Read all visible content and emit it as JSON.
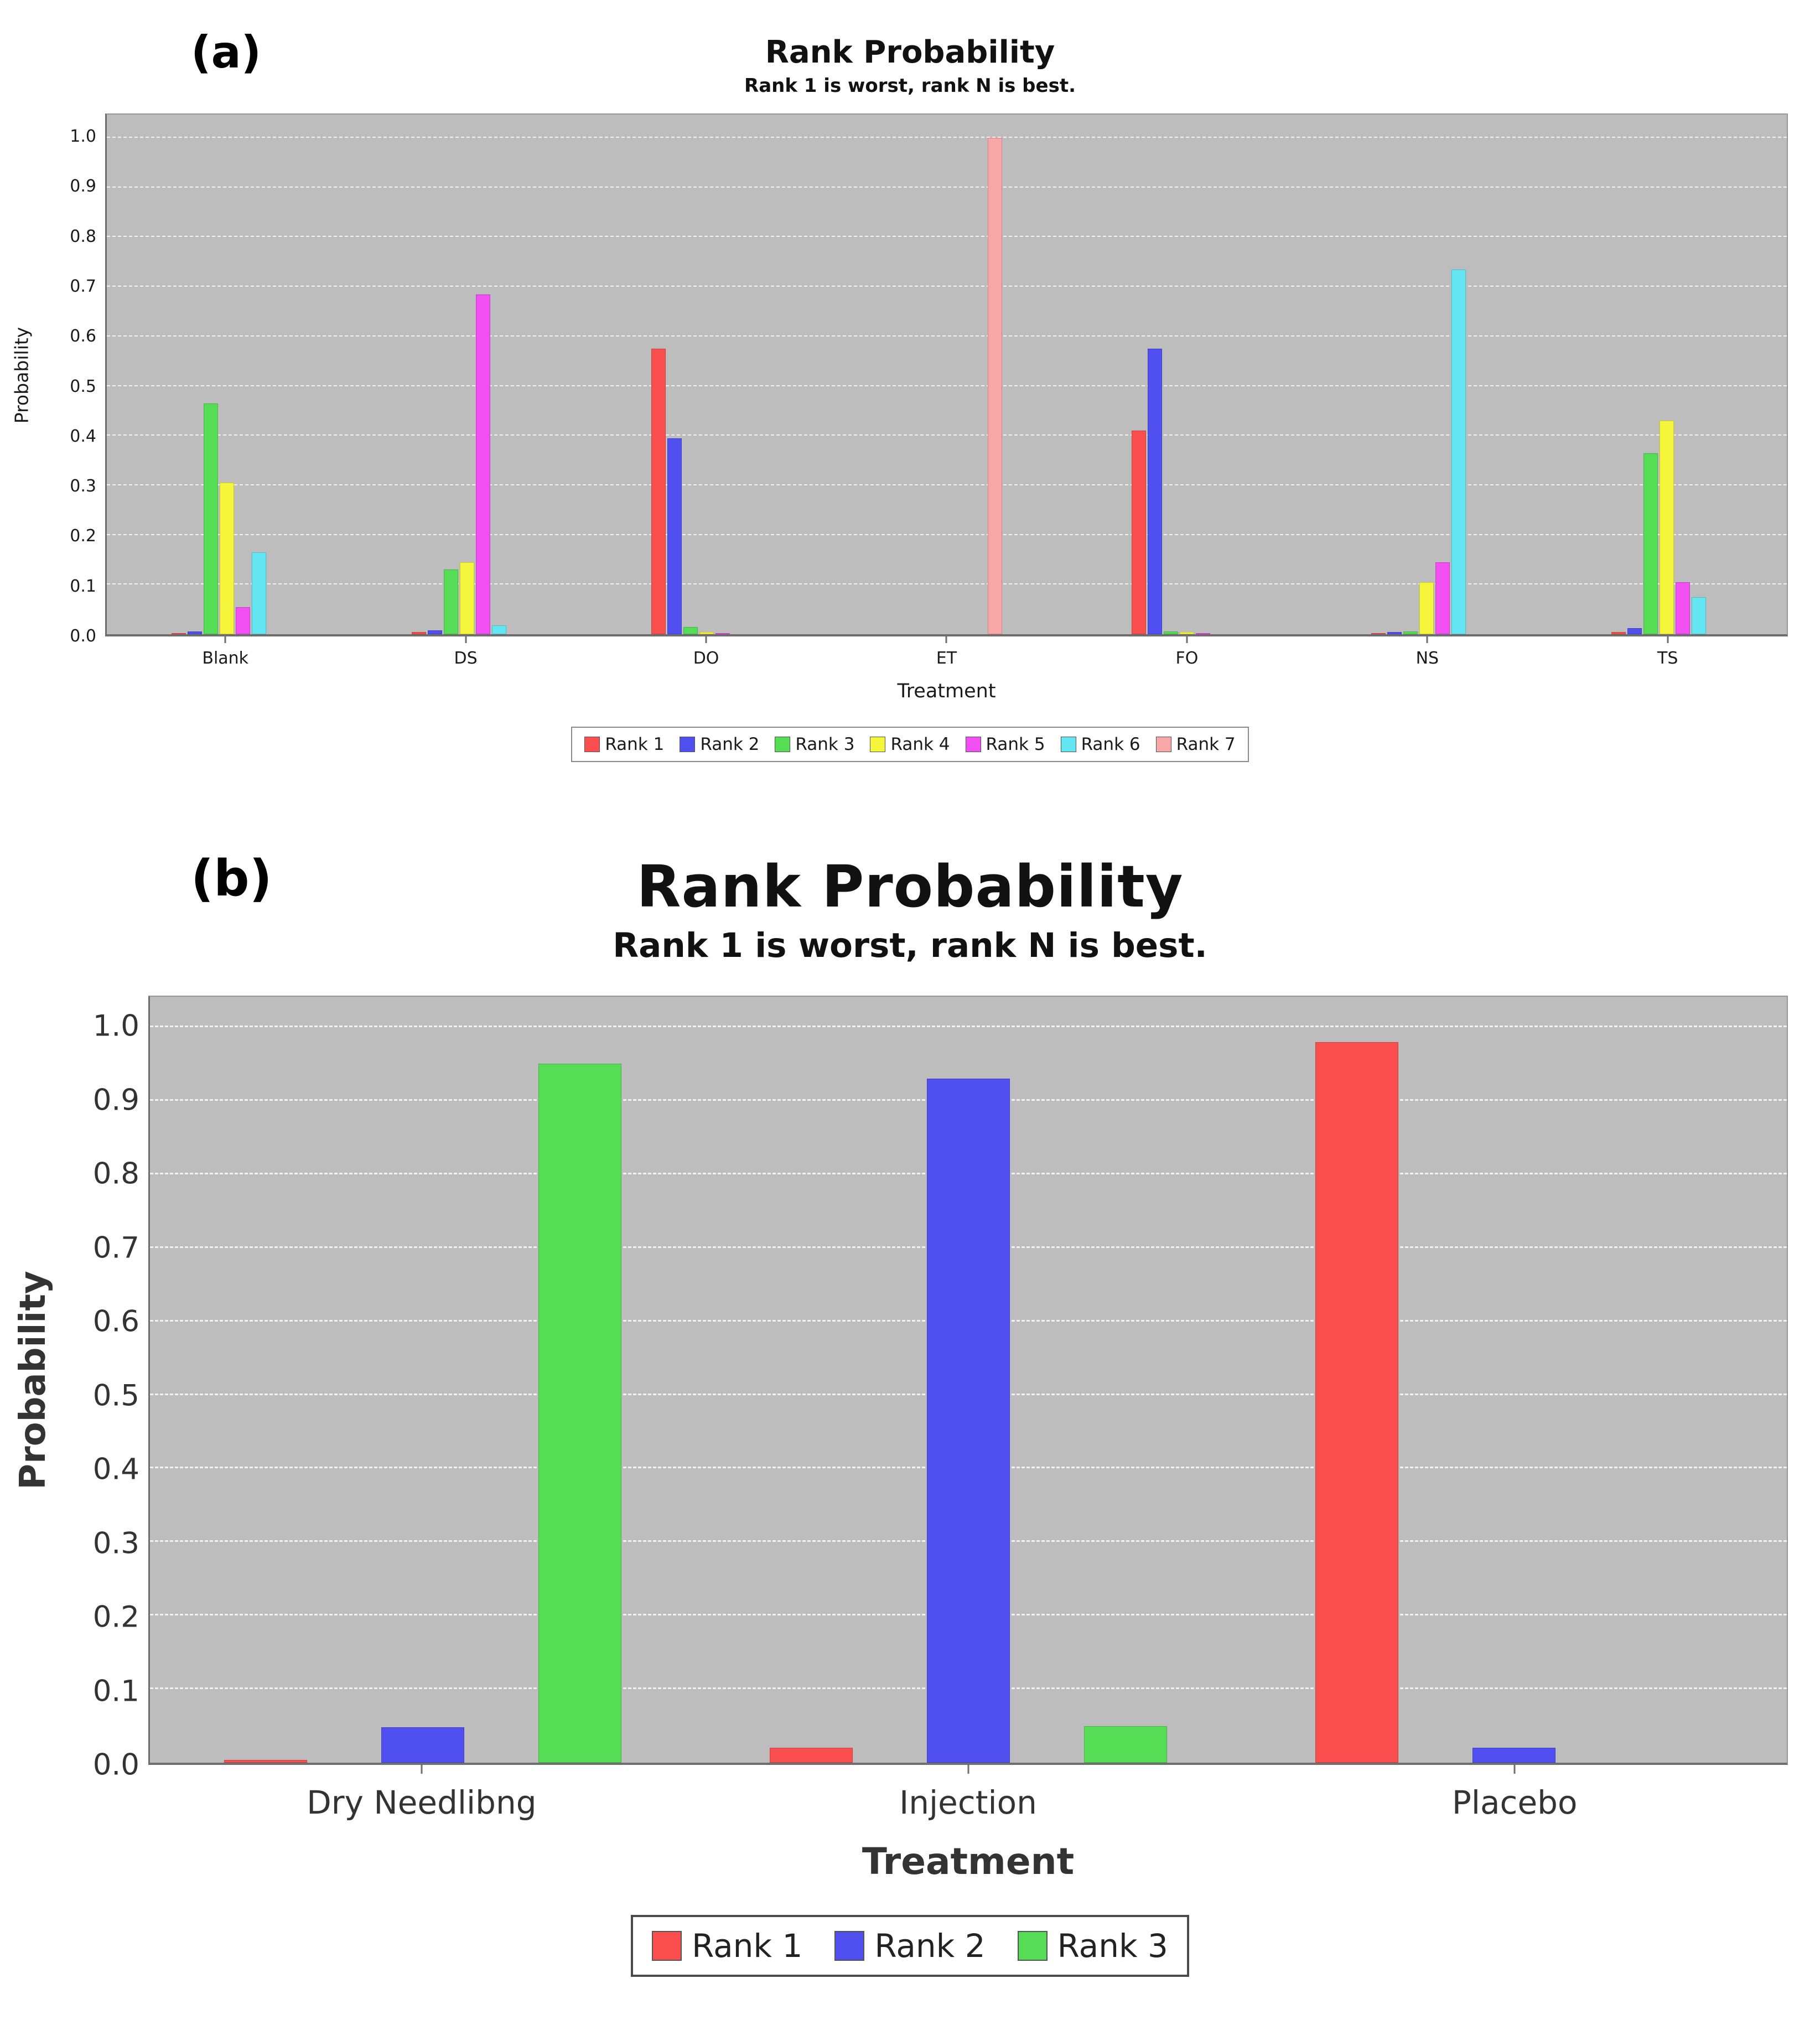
{
  "panels": {
    "a": "(a)",
    "b": "(b)"
  },
  "chart_data": [
    {
      "type": "bar",
      "title": "Rank Probability",
      "subtitle": "Rank 1 is worst, rank N is best.",
      "xlabel": "Treatment",
      "ylabel": "Probability",
      "ylim": [
        0,
        1.0
      ],
      "yticks": [
        0.0,
        0.1,
        0.2,
        0.3,
        0.4,
        0.5,
        0.6,
        0.7,
        0.8,
        0.9,
        1.0
      ],
      "grid": "horizontal-dashed",
      "legend_position": "bottom",
      "plot_background": "#bdbdbd",
      "categories": [
        "Blank",
        "DS",
        "DO",
        "ET",
        "FO",
        "NS",
        "TS"
      ],
      "series": [
        {
          "name": "Rank 1",
          "color": "#fb4f4f",
          "values": [
            0.002,
            0.005,
            0.575,
            0.0,
            0.41,
            0.002,
            0.005
          ]
        },
        {
          "name": "Rank 2",
          "color": "#5050f0",
          "values": [
            0.006,
            0.008,
            0.395,
            0.0,
            0.575,
            0.005,
            0.012
          ]
        },
        {
          "name": "Rank 3",
          "color": "#55dd55",
          "values": [
            0.465,
            0.13,
            0.015,
            0.0,
            0.006,
            0.006,
            0.365
          ]
        },
        {
          "name": "Rank 4",
          "color": "#f5f53c",
          "values": [
            0.305,
            0.145,
            0.005,
            0.0,
            0.004,
            0.105,
            0.43
          ]
        },
        {
          "name": "Rank 5",
          "color": "#f24ff2",
          "values": [
            0.055,
            0.685,
            0.002,
            0.0,
            0.002,
            0.145,
            0.105
          ]
        },
        {
          "name": "Rank 6",
          "color": "#63e6f2",
          "values": [
            0.165,
            0.018,
            0.0,
            0.0,
            0.0,
            0.735,
            0.075
          ]
        },
        {
          "name": "Rank 7",
          "color": "#f9a6a6",
          "values": [
            0.0,
            0.0,
            0.0,
            1.0,
            0.0,
            0.0,
            0.0
          ]
        }
      ]
    },
    {
      "type": "bar",
      "title": "Rank Probability",
      "subtitle": "Rank 1 is worst, rank N is best.",
      "xlabel": "Treatment",
      "ylabel": "Probability",
      "ylim": [
        0,
        1.0
      ],
      "yticks": [
        0.0,
        0.1,
        0.2,
        0.3,
        0.4,
        0.5,
        0.6,
        0.7,
        0.8,
        0.9,
        1.0
      ],
      "grid": "horizontal-dashed",
      "legend_position": "bottom",
      "plot_background": "#bdbdbd",
      "categories": [
        "Dry Needlibng",
        "Injection",
        "Placebo"
      ],
      "series": [
        {
          "name": "Rank 1",
          "color": "#fb4f4f",
          "values": [
            0.004,
            0.02,
            0.98
          ]
        },
        {
          "name": "Rank 2",
          "color": "#5050f0",
          "values": [
            0.048,
            0.93,
            0.02
          ]
        },
        {
          "name": "Rank 3",
          "color": "#55dd55",
          "values": [
            0.95,
            0.05,
            0.0
          ]
        }
      ]
    }
  ]
}
